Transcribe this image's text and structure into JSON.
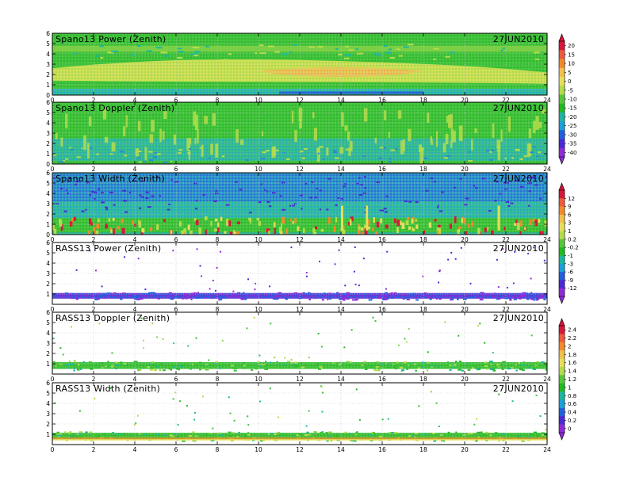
{
  "chart_data": [
    {
      "type": "heatmap",
      "title": "Spano13 Power (Zenith)",
      "date": "27JUN2010",
      "x_ticks": [
        "0",
        "2",
        "4",
        "6",
        "8",
        "10",
        "12",
        "14",
        "16",
        "18",
        "20",
        "22",
        "24"
      ],
      "y_ticks": [
        "0",
        "1",
        "2",
        "3",
        "4",
        "5",
        "6"
      ],
      "xlim": [
        0,
        24
      ],
      "ylim": [
        0,
        6
      ],
      "colorbar_group": 0
    },
    {
      "type": "heatmap",
      "title": "Spano13 Doppler (Zenith)",
      "date": "27JUN2010",
      "x_ticks": [
        "0",
        "2",
        "4",
        "6",
        "8",
        "10",
        "12",
        "14",
        "16",
        "18",
        "20",
        "22",
        "24"
      ],
      "y_ticks": [
        "0",
        "1",
        "2",
        "3",
        "4",
        "5",
        "6"
      ],
      "xlim": [
        0,
        24
      ],
      "ylim": [
        0,
        6
      ],
      "colorbar_group": 0
    },
    {
      "type": "heatmap",
      "title": "Spano13 Width (Zenith)",
      "date": "27JUN2010",
      "x_ticks": [
        "0",
        "2",
        "4",
        "6",
        "8",
        "10",
        "12",
        "14",
        "16",
        "18",
        "20",
        "22",
        "24"
      ],
      "y_ticks": [
        "0",
        "1",
        "2",
        "3",
        "4",
        "5",
        "6"
      ],
      "xlim": [
        0,
        24
      ],
      "ylim": [
        0,
        6
      ],
      "colorbar_group": 1
    },
    {
      "type": "heatmap",
      "title": "RASS13 Power (Zenith)",
      "date": "27JUN2010",
      "x_ticks": [
        "0",
        "2",
        "4",
        "6",
        "8",
        "10",
        "12",
        "14",
        "16",
        "18",
        "20",
        "22",
        "24"
      ],
      "y_ticks": [
        "1",
        "2",
        "3",
        "4",
        "5",
        "6"
      ],
      "xlim": [
        0,
        24
      ],
      "ylim": [
        0,
        6
      ],
      "colorbar_group": 1
    },
    {
      "type": "heatmap",
      "title": "RASS13 Doppler (Zenith)",
      "date": "27JUN2010",
      "x_ticks": [
        "0",
        "2",
        "4",
        "6",
        "8",
        "10",
        "12",
        "14",
        "16",
        "18",
        "20",
        "22",
        "24"
      ],
      "y_ticks": [
        "1",
        "2",
        "3",
        "4",
        "5",
        "6"
      ],
      "xlim": [
        0,
        24
      ],
      "ylim": [
        0,
        6
      ],
      "colorbar_group": 2
    },
    {
      "type": "heatmap",
      "title": "RASS13 Width (Zenith)",
      "date": "27JUN2010",
      "x_ticks": [
        "0",
        "2",
        "4",
        "6",
        "8",
        "10",
        "12",
        "14",
        "16",
        "18",
        "20",
        "22",
        "24"
      ],
      "y_ticks": [
        "1",
        "2",
        "3",
        "4",
        "5",
        "6"
      ],
      "xlim": [
        0,
        24
      ],
      "ylim": [
        0,
        6
      ],
      "colorbar_group": 2
    }
  ],
  "colorbars": [
    {
      "labels": [
        "20",
        "15",
        "10",
        "5",
        "0",
        "-5",
        "-10",
        "-15",
        "-20",
        "-25",
        "-30",
        "-35",
        "-40"
      ],
      "colors": [
        "#d7163a",
        "#ef5a3a",
        "#f28a2b",
        "#f3c04a",
        "#e6df58",
        "#b5dc4a",
        "#55c83a",
        "#1fbc1f",
        "#1bb7a0",
        "#1c9fd8",
        "#2060e0",
        "#4b28d8",
        "#8e2bd8"
      ]
    },
    {
      "labels": [
        "12",
        "9",
        "6",
        "3",
        "1",
        "0.2",
        "-0.2",
        "-1",
        "-3",
        "-6",
        "-9",
        "-12"
      ],
      "colors": [
        "#d7163a",
        "#ef5a3a",
        "#f28a2b",
        "#f3c04a",
        "#e6df58",
        "#b5dc4a",
        "#55c83a",
        "#1fbc1f",
        "#1bb7a0",
        "#1c9fd8",
        "#2060e0",
        "#4b28d8",
        "#8e2bd8"
      ]
    },
    {
      "labels": [
        "2.4",
        "2.2",
        "2",
        "1.8",
        "1.6",
        "1.4",
        "1.2",
        "1",
        "0.8",
        "0.6",
        "0.4",
        "0.2",
        "0"
      ],
      "colors": [
        "#d7163a",
        "#ef5a3a",
        "#f28a2b",
        "#f3c04a",
        "#e6df58",
        "#b5dc4a",
        "#55c83a",
        "#1fbc1f",
        "#1bb7a0",
        "#1c9fd8",
        "#2060e0",
        "#4b28d8",
        "#8e2bd8"
      ]
    }
  ]
}
